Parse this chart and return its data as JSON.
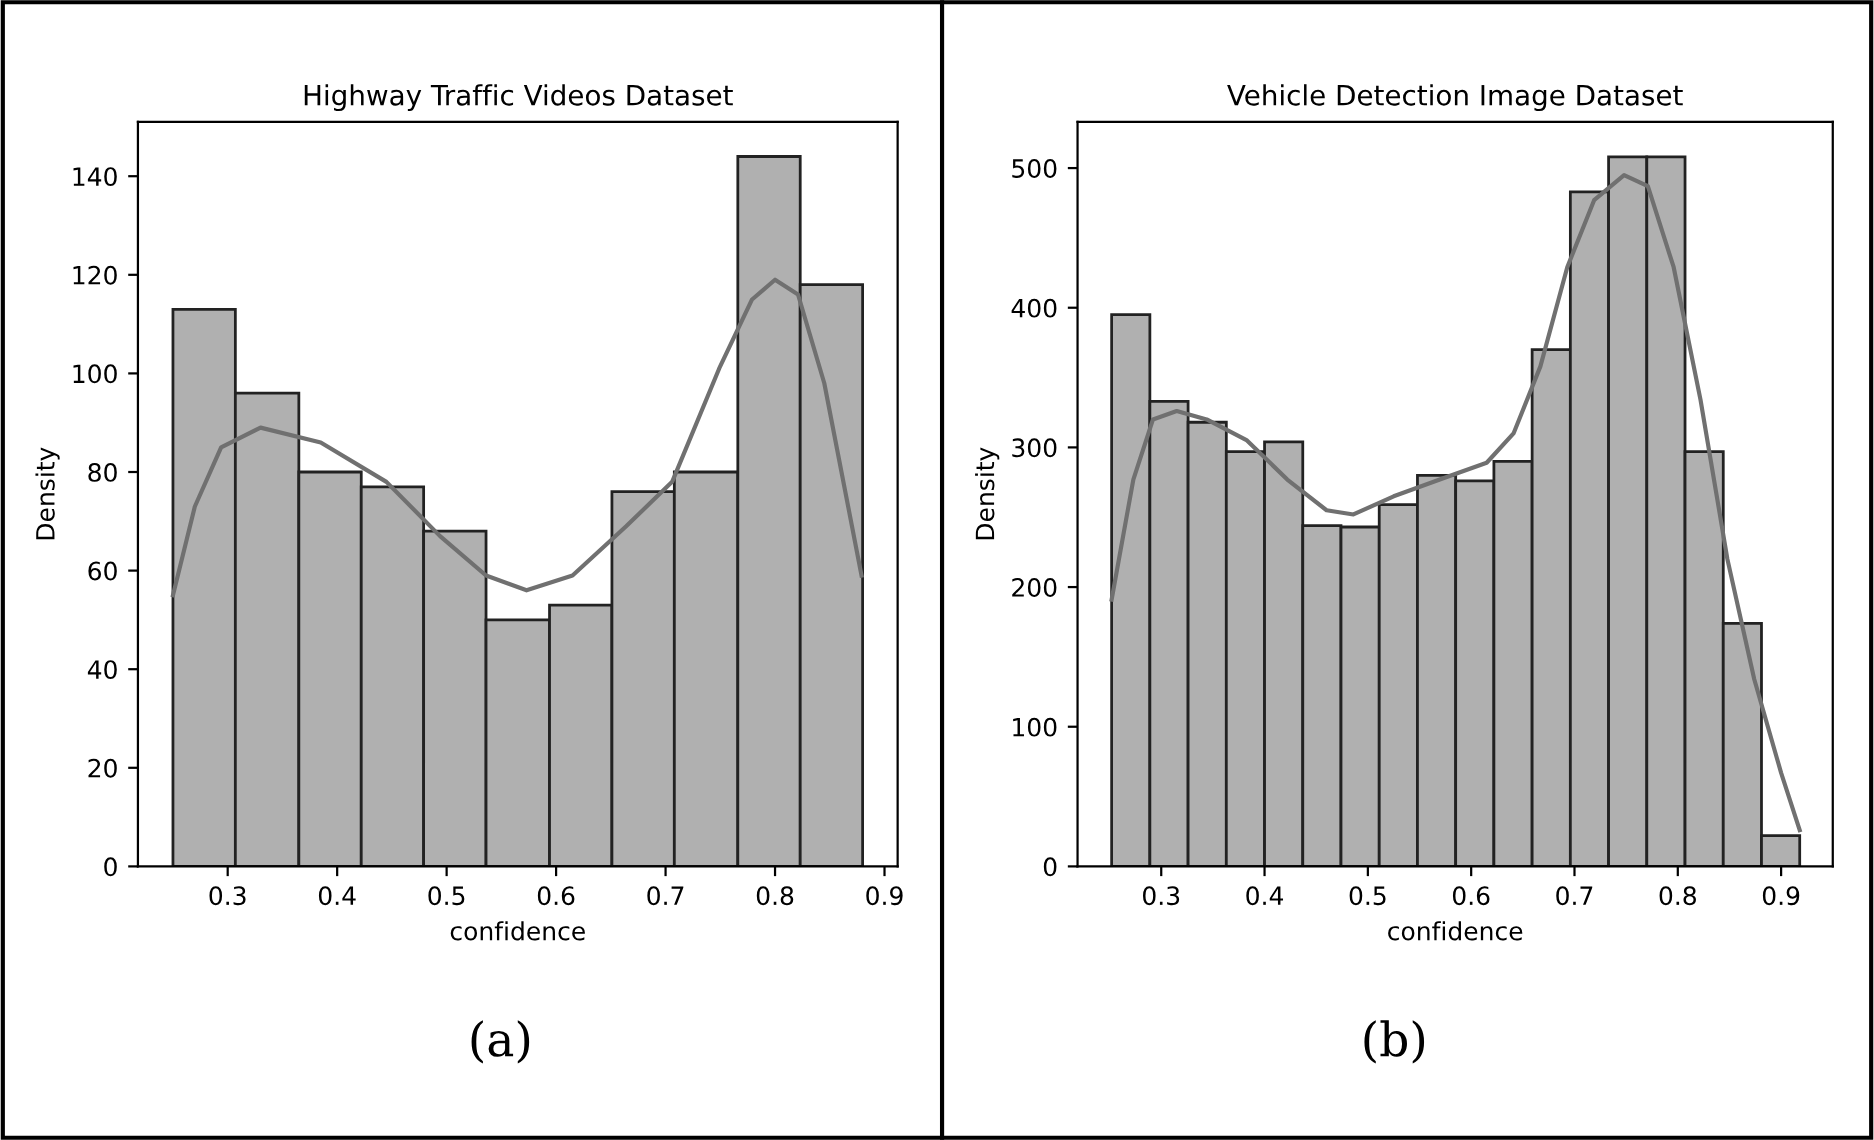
{
  "chart_data": [
    {
      "type": "histogram",
      "title": "Highway Traffic Videos Dataset",
      "xlabel": "confidence",
      "ylabel": "Density",
      "annotations": [
        "(a)"
      ],
      "color": "#b0b0b0",
      "bins": [
        0.25,
        0.307,
        0.365,
        0.422,
        0.479,
        0.536,
        0.594,
        0.651,
        0.708,
        0.766,
        0.823,
        0.88
      ],
      "values": [
        113,
        96,
        80,
        77,
        68,
        50,
        53,
        76,
        80,
        144,
        118
      ],
      "series": [
        {
          "type": "line",
          "color": "#707070",
          "x": [
            0.25,
            0.27,
            0.294,
            0.33,
            0.385,
            0.445,
            0.494,
            0.536,
            0.573,
            0.615,
            0.664,
            0.706,
            0.749,
            0.779,
            0.8,
            0.821,
            0.845,
            0.879
          ],
          "values": [
            55,
            73,
            85,
            89,
            86,
            78,
            67,
            59,
            56,
            59,
            69,
            78,
            101,
            115,
            119,
            116,
            98,
            59
          ]
        }
      ],
      "xlim": [
        0.218,
        0.912
      ],
      "ylim": [
        0,
        151
      ],
      "xticks": [
        0.3,
        0.4,
        0.5,
        0.6,
        0.7,
        0.8,
        0.9
      ],
      "yticks": [
        0,
        20,
        40,
        60,
        80,
        100,
        120,
        140
      ]
    },
    {
      "type": "histogram",
      "title": "Vehicle Detection Image Dataset",
      "xlabel": "confidence",
      "ylabel": "Density",
      "annotations": [
        "(b)"
      ],
      "color": "#b0b0b0",
      "bins": [
        0.252,
        0.289,
        0.326,
        0.363,
        0.4,
        0.437,
        0.474,
        0.511,
        0.548,
        0.585,
        0.622,
        0.659,
        0.696,
        0.733,
        0.77,
        0.807,
        0.844,
        0.881,
        0.918
      ],
      "values": [
        395,
        333,
        318,
        297,
        304,
        244,
        243,
        259,
        280,
        276,
        290,
        370,
        483,
        508,
        508,
        297,
        174,
        22
      ],
      "series": [
        {
          "type": "line",
          "color": "#707070",
          "x": [
            0.252,
            0.273,
            0.292,
            0.315,
            0.344,
            0.383,
            0.422,
            0.46,
            0.486,
            0.525,
            0.577,
            0.615,
            0.641,
            0.667,
            0.693,
            0.719,
            0.748,
            0.771,
            0.796,
            0.822,
            0.848,
            0.874,
            0.9,
            0.918
          ],
          "values": [
            191,
            277,
            320,
            326,
            320,
            305,
            277,
            255,
            252,
            265,
            279,
            289,
            310,
            358,
            429,
            477,
            495,
            487,
            429,
            334,
            220,
            134,
            67,
            26
          ]
        }
      ],
      "xlim": [
        0.219,
        0.95
      ],
      "ylim": [
        0,
        533
      ],
      "xticks": [
        0.3,
        0.4,
        0.5,
        0.6,
        0.7,
        0.8,
        0.9
      ],
      "yticks": [
        0,
        100,
        200,
        300,
        400,
        500
      ]
    }
  ]
}
